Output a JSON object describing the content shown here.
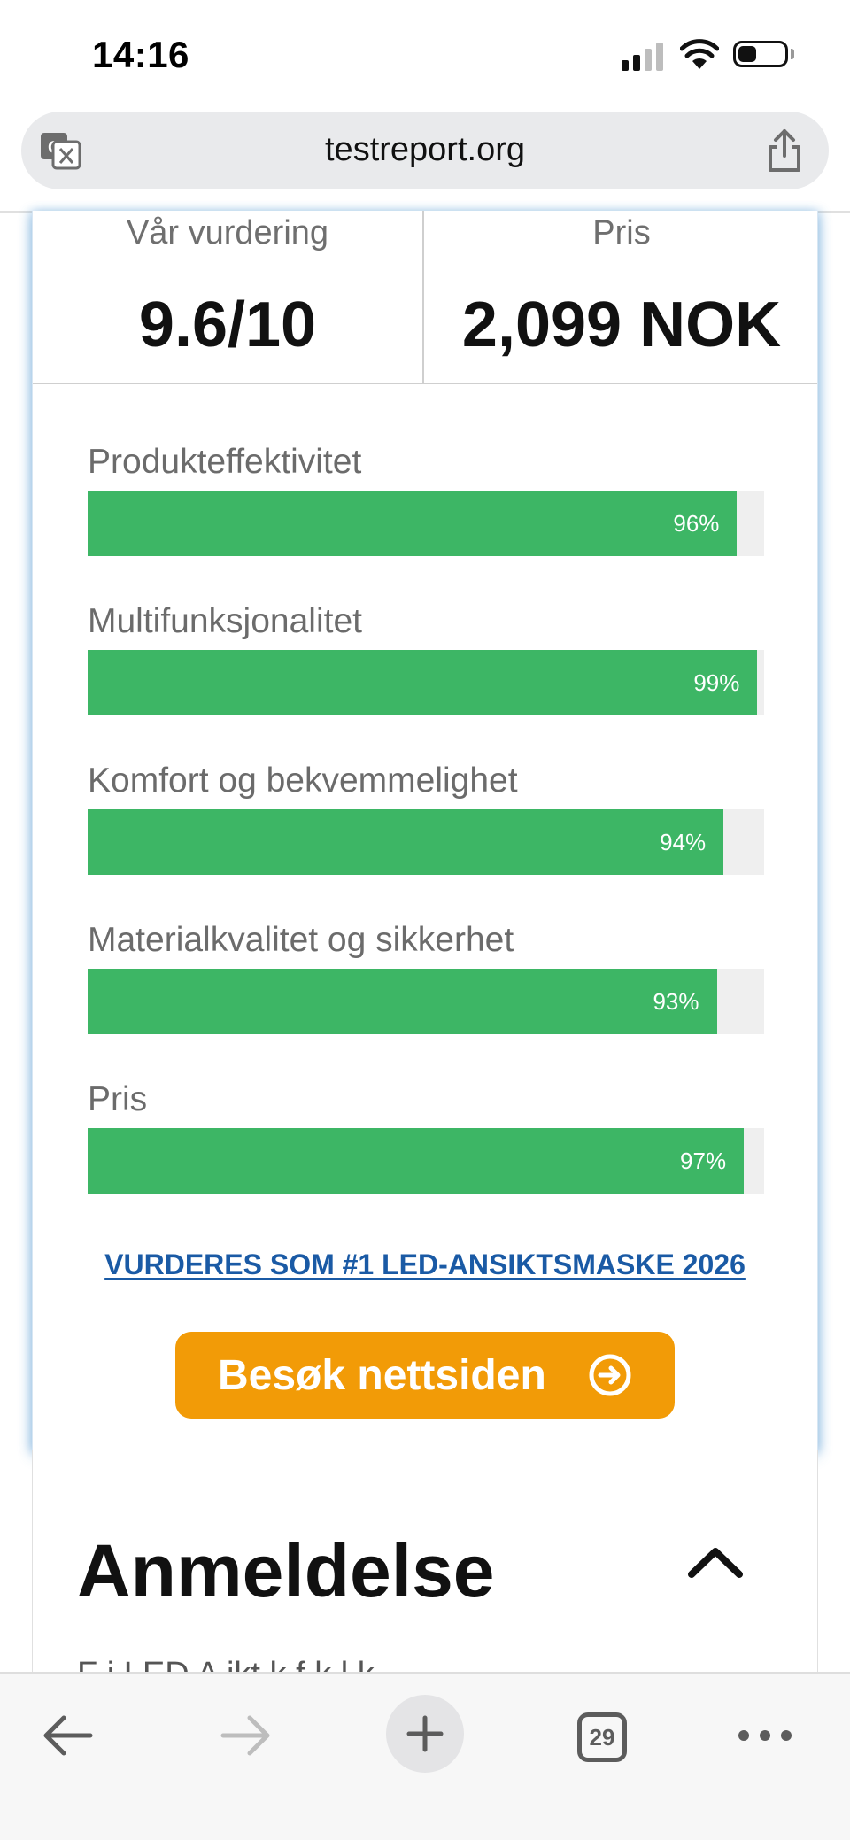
{
  "status_bar": {
    "time": "14:16",
    "icons": [
      "signal-icon",
      "wifi-icon",
      "battery-icon"
    ]
  },
  "browser": {
    "url": "testreport.org",
    "translate_icon": "translate-icon",
    "share_icon": "share-icon"
  },
  "product_card": {
    "rating_label": "Vår vurdering",
    "rating_value": "9.6/10",
    "price_label": "Pris",
    "price_value": "2,099 NOK",
    "bars": [
      {
        "label": "Produkteffektivitet",
        "percent": 96,
        "display": "96%"
      },
      {
        "label": "Multifunksjonalitet",
        "percent": 99,
        "display": "99%"
      },
      {
        "label": "Komfort og bekvemmelighet",
        "percent": 94,
        "display": "94%"
      },
      {
        "label": "Materialkvalitet og sikkerhet",
        "percent": 93,
        "display": "93%"
      },
      {
        "label": "Pris",
        "percent": 97,
        "display": "97%"
      }
    ],
    "award_link": "VURDERES SOM #1 LED-ANSIKTSMASKE 2026",
    "cta_label": "Besøk nettsiden",
    "colors": {
      "bar_fill": "#3db665",
      "bar_track": "#efefef",
      "cta": "#f29b07",
      "link": "#1a5aa5"
    }
  },
  "review": {
    "title": "Anmeldelse",
    "toggle_icon": "chevron-up-icon",
    "peek_text": "F    i   LED A  ikt    k    f   k l  k"
  },
  "toolbar": {
    "tab_count": "29",
    "icons": [
      "back-arrow-icon",
      "forward-arrow-icon",
      "plus-icon",
      "tabs-icon",
      "more-icon"
    ]
  }
}
